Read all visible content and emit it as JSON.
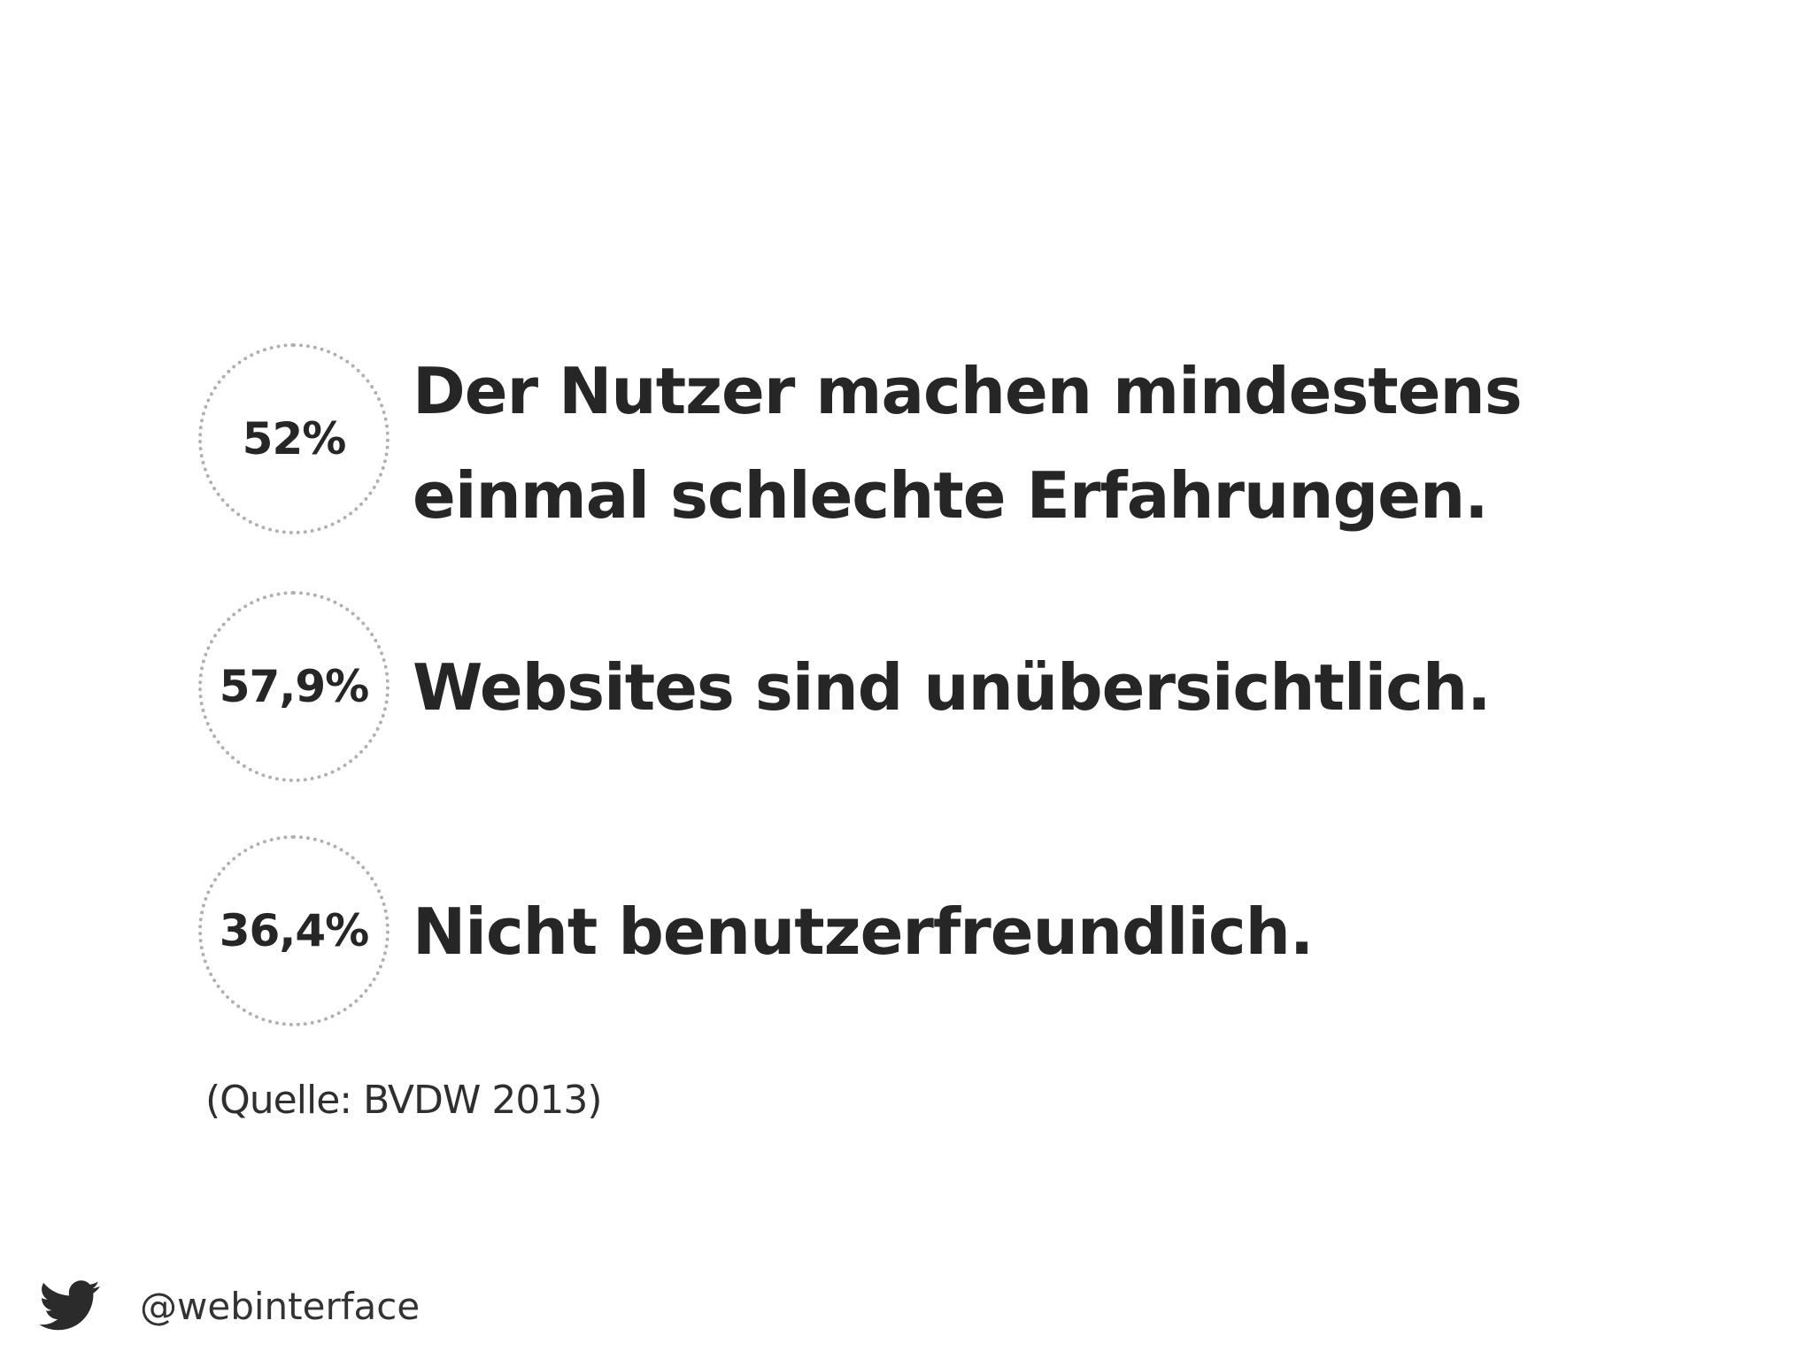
{
  "stats": [
    {
      "percent": "52%",
      "lines": [
        "Der Nutzer machen mindestens",
        "einmal schlechte Erfahrungen."
      ]
    },
    {
      "percent": "57,9%",
      "lines": [
        "Websites sind unübersichtlich."
      ]
    },
    {
      "percent": "36,4%",
      "lines": [
        "Nicht benutzerfreundlich."
      ]
    }
  ],
  "source": "(Quelle: BVDW 2013)",
  "footer": {
    "icon": "twitter-bird-icon",
    "handle": "@webinterface"
  },
  "colors": {
    "text": "#262626",
    "circle_border": "#b0b0b0",
    "background": "#ffffff"
  }
}
